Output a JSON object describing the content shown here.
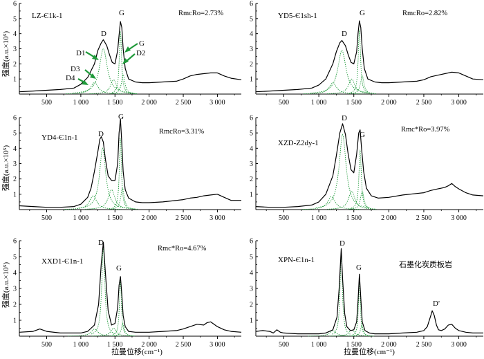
{
  "x_axis_title": "拉曼位移(cm⁻¹)",
  "y_axis_title": "强度(a.u.×10⁵)",
  "colors": {
    "spectrum": "#000000",
    "fit_band": "#1f9a3a",
    "arrow": "#1f9a3a"
  },
  "chart_data": [
    {
      "type": "line",
      "sample": "LZ-Є1k-1",
      "ro_label": "RmcRo=2.73%",
      "xlim": [
        100,
        3350
      ],
      "ylim": [
        0,
        6
      ],
      "x_ticks": [
        "500",
        "1 000",
        "1 500",
        "2 000",
        "2 500",
        "3 000"
      ],
      "y_ticks": [
        "1",
        "2",
        "3",
        "4",
        "5",
        "6"
      ],
      "peak_labels": [
        "D",
        "G",
        "G",
        "D1",
        "D2",
        "D3",
        "D4"
      ],
      "fit_bands": [
        {
          "name": "D4",
          "center": 1200,
          "height": 0.78,
          "width": 130
        },
        {
          "name": "D1",
          "center": 1330,
          "height": 3.0,
          "width": 140
        },
        {
          "name": "D3",
          "center": 1480,
          "height": 0.95,
          "width": 110
        },
        {
          "name": "G",
          "center": 1580,
          "height": 4.2,
          "width": 38
        },
        {
          "name": "D2",
          "center": 1620,
          "height": 1.3,
          "width": 60
        }
      ],
      "spectrum": {
        "x": [
          100,
          300,
          500,
          700,
          900,
          1000,
          1100,
          1200,
          1250,
          1300,
          1330,
          1380,
          1420,
          1460,
          1500,
          1540,
          1560,
          1580,
          1600,
          1620,
          1650,
          1700,
          1800,
          1900,
          2000,
          2200,
          2400,
          2500,
          2600,
          2700,
          2800,
          2900,
          3000,
          3100,
          3200,
          3350
        ],
        "y": [
          0.15,
          0.2,
          0.25,
          0.3,
          0.4,
          0.65,
          1.1,
          2.0,
          2.9,
          3.4,
          3.6,
          3.2,
          2.6,
          2.1,
          2.0,
          2.9,
          3.9,
          4.8,
          4.4,
          3.0,
          1.7,
          1.0,
          0.8,
          0.75,
          0.75,
          0.8,
          0.85,
          1.0,
          1.2,
          1.3,
          1.35,
          1.4,
          1.4,
          1.2,
          1.05,
          0.95
        ]
      }
    },
    {
      "type": "line",
      "sample": "YD5-Є1sh-1",
      "ro_label": "RmcRo=2.82%",
      "xlim": [
        100,
        3350
      ],
      "ylim": [
        0,
        6
      ],
      "x_ticks": [
        "500",
        "1 000",
        "1 500",
        "2 000",
        "2 500",
        "3 000"
      ],
      "y_ticks": [
        "1",
        "2",
        "3",
        "4",
        "5",
        "6"
      ],
      "peak_labels": [
        "D",
        "G"
      ],
      "fit_bands": [
        {
          "name": "D4",
          "center": 1200,
          "height": 0.75,
          "width": 130
        },
        {
          "name": "D1",
          "center": 1330,
          "height": 2.9,
          "width": 140
        },
        {
          "name": "D3",
          "center": 1470,
          "height": 1.0,
          "width": 110
        },
        {
          "name": "G",
          "center": 1580,
          "height": 4.3,
          "width": 38
        },
        {
          "name": "D2",
          "center": 1620,
          "height": 1.2,
          "width": 60
        }
      ],
      "spectrum": {
        "x": [
          100,
          300,
          500,
          700,
          900,
          1000,
          1100,
          1200,
          1250,
          1300,
          1330,
          1380,
          1420,
          1460,
          1500,
          1540,
          1560,
          1580,
          1600,
          1620,
          1650,
          1700,
          1800,
          1900,
          2000,
          2200,
          2400,
          2500,
          2600,
          2700,
          2800,
          2900,
          3000,
          3100,
          3200,
          3350
        ],
        "y": [
          0.15,
          0.2,
          0.25,
          0.3,
          0.4,
          0.6,
          1.0,
          2.0,
          2.8,
          3.4,
          3.55,
          3.2,
          2.6,
          2.1,
          2.0,
          2.8,
          4.0,
          4.85,
          4.4,
          3.0,
          1.7,
          1.0,
          0.8,
          0.75,
          0.75,
          0.8,
          0.85,
          0.95,
          1.15,
          1.25,
          1.35,
          1.45,
          1.4,
          1.2,
          1.0,
          0.95
        ]
      }
    },
    {
      "type": "line",
      "sample": "YD4-Є1n-1",
      "ro_label": "RmcRo=3.31%",
      "xlim": [
        100,
        3350
      ],
      "ylim": [
        0,
        6
      ],
      "x_ticks": [
        "500",
        "1 000",
        "1 500",
        "2 000",
        "2 500",
        "3 000"
      ],
      "y_ticks": [
        "1",
        "2",
        "3",
        "4",
        "5",
        "6"
      ],
      "peak_labels": [
        "D",
        "G"
      ],
      "fit_bands": [
        {
          "name": "D4",
          "center": 1180,
          "height": 0.9,
          "width": 130
        },
        {
          "name": "D1",
          "center": 1320,
          "height": 4.0,
          "width": 110
        },
        {
          "name": "D3",
          "center": 1450,
          "height": 1.3,
          "width": 120
        },
        {
          "name": "G",
          "center": 1580,
          "height": 4.8,
          "width": 36
        },
        {
          "name": "D2",
          "center": 1610,
          "height": 1.4,
          "width": 60
        }
      ],
      "spectrum": {
        "x": [
          100,
          300,
          500,
          700,
          900,
          1000,
          1100,
          1150,
          1200,
          1250,
          1280,
          1300,
          1330,
          1360,
          1400,
          1450,
          1500,
          1540,
          1560,
          1580,
          1600,
          1620,
          1650,
          1700,
          1800,
          1900,
          2000,
          2200,
          2400,
          2500,
          2600,
          2700,
          2800,
          2900,
          3000,
          3100,
          3200,
          3350
        ],
        "y": [
          0.25,
          0.2,
          0.15,
          0.15,
          0.2,
          0.35,
          0.8,
          1.4,
          2.5,
          3.8,
          4.6,
          4.75,
          4.4,
          3.3,
          2.2,
          1.9,
          1.9,
          3.0,
          5.0,
          5.9,
          4.3,
          2.5,
          1.3,
          0.75,
          0.5,
          0.45,
          0.45,
          0.5,
          0.6,
          0.65,
          0.75,
          0.8,
          0.9,
          0.95,
          1.0,
          0.8,
          0.6,
          0.6
        ]
      }
    },
    {
      "type": "line",
      "sample": "XZD-Z2dy-1",
      "ro_label": "Rmc*Ro=3.97%",
      "xlim": [
        100,
        3350
      ],
      "ylim": [
        0,
        6
      ],
      "x_ticks": [
        "500",
        "1 000",
        "1 500",
        "2 000",
        "2 500",
        "3 000"
      ],
      "y_ticks": [
        "1",
        "2",
        "3",
        "4",
        "5",
        "6"
      ],
      "peak_labels": [
        "D",
        "G"
      ],
      "fit_bands": [
        {
          "name": "D4",
          "center": 1180,
          "height": 0.85,
          "width": 130
        },
        {
          "name": "D1",
          "center": 1340,
          "height": 4.9,
          "width": 120
        },
        {
          "name": "D3",
          "center": 1470,
          "height": 1.2,
          "width": 110
        },
        {
          "name": "G",
          "center": 1590,
          "height": 3.9,
          "width": 40
        },
        {
          "name": "D2",
          "center": 1620,
          "height": 1.2,
          "width": 60
        }
      ],
      "spectrum": {
        "x": [
          100,
          300,
          500,
          700,
          900,
          1000,
          1100,
          1200,
          1250,
          1300,
          1340,
          1380,
          1420,
          1460,
          1500,
          1540,
          1570,
          1590,
          1610,
          1640,
          1680,
          1750,
          1850,
          2000,
          2200,
          2400,
          2500,
          2600,
          2700,
          2800,
          2850,
          2900,
          2950,
          3000,
          3100,
          3200,
          3350
        ],
        "y": [
          0.2,
          0.15,
          0.15,
          0.2,
          0.3,
          0.5,
          1.0,
          2.2,
          3.5,
          5.0,
          5.6,
          4.9,
          3.6,
          2.6,
          2.4,
          3.6,
          5.0,
          5.2,
          4.0,
          2.5,
          1.4,
          0.9,
          0.75,
          0.8,
          0.95,
          1.05,
          1.1,
          1.25,
          1.35,
          1.45,
          1.55,
          1.7,
          1.5,
          1.35,
          1.1,
          0.95,
          0.9
        ]
      }
    },
    {
      "type": "line",
      "sample": "XXD1-Є1n-1",
      "ro_label": "Rmc*Ro=4.67%",
      "xlim": [
        100,
        3350
      ],
      "ylim": [
        0,
        6
      ],
      "x_ticks": [
        "500",
        "1 000",
        "1 500",
        "2 000",
        "2 500",
        "3 000"
      ],
      "y_ticks": [
        "1",
        "2",
        "3",
        "4",
        "5",
        "6"
      ],
      "peak_labels": [
        "D",
        "G"
      ],
      "fit_bands": [
        {
          "name": "D4",
          "center": 1200,
          "height": 0.45,
          "width": 120
        },
        {
          "name": "D1",
          "center": 1330,
          "height": 5.6,
          "width": 55
        },
        {
          "name": "D3",
          "center": 1480,
          "height": 0.5,
          "width": 100
        },
        {
          "name": "G",
          "center": 1580,
          "height": 3.5,
          "width": 35
        },
        {
          "name": "D2",
          "center": 1615,
          "height": 0.8,
          "width": 50
        }
      ],
      "spectrum": {
        "x": [
          100,
          300,
          400,
          500,
          700,
          900,
          1000,
          1100,
          1200,
          1260,
          1300,
          1330,
          1360,
          1400,
          1450,
          1500,
          1540,
          1560,
          1580,
          1600,
          1620,
          1650,
          1700,
          1800,
          2000,
          2200,
          2400,
          2500,
          2600,
          2700,
          2800,
          2850,
          2900,
          2950,
          3000,
          3100,
          3200,
          3350
        ],
        "y": [
          0.25,
          0.3,
          0.45,
          0.3,
          0.2,
          0.2,
          0.2,
          0.3,
          0.7,
          2.0,
          4.6,
          5.9,
          4.0,
          1.6,
          0.7,
          0.8,
          1.8,
          3.2,
          3.75,
          2.6,
          1.3,
          0.6,
          0.3,
          0.25,
          0.25,
          0.3,
          0.35,
          0.45,
          0.6,
          0.75,
          0.7,
          0.85,
          0.9,
          0.75,
          0.6,
          0.4,
          0.3,
          0.25
        ]
      }
    },
    {
      "type": "line",
      "sample": "XPN-Є1n-1",
      "ro_label": "",
      "note": "石墨化炭质板岩",
      "xlim": [
        100,
        3350
      ],
      "ylim": [
        0,
        6
      ],
      "x_ticks": [
        "500",
        "1 000",
        "1 500",
        "2 000",
        "2 500",
        "3 000"
      ],
      "y_ticks": [
        "1",
        "2",
        "3",
        "4",
        "5",
        "6"
      ],
      "peak_labels": [
        "D",
        "G",
        "D'"
      ],
      "fit_bands": [
        {
          "name": "D4",
          "center": 1200,
          "height": 0.35,
          "width": 110
        },
        {
          "name": "D1",
          "center": 1320,
          "height": 5.3,
          "width": 40
        },
        {
          "name": "D3",
          "center": 1470,
          "height": 0.4,
          "width": 100
        },
        {
          "name": "G",
          "center": 1580,
          "height": 3.6,
          "width": 30
        },
        {
          "name": "D2",
          "center": 1615,
          "height": 0.7,
          "width": 45
        }
      ],
      "spectrum": {
        "x": [
          100,
          200,
          300,
          350,
          400,
          450,
          500,
          700,
          900,
          1000,
          1100,
          1200,
          1260,
          1290,
          1320,
          1340,
          1370,
          1400,
          1450,
          1500,
          1540,
          1560,
          1580,
          1600,
          1620,
          1660,
          1720,
          1800,
          2000,
          2200,
          2400,
          2500,
          2550,
          2600,
          2620,
          2650,
          2680,
          2710,
          2750,
          2800,
          2850,
          2900,
          2950,
          3000,
          3100,
          3200,
          3350
        ],
        "y": [
          0.3,
          0.35,
          0.3,
          0.2,
          0.4,
          0.25,
          0.2,
          0.15,
          0.15,
          0.15,
          0.2,
          0.4,
          1.2,
          3.0,
          5.5,
          3.6,
          1.4,
          0.6,
          0.35,
          0.4,
          0.9,
          2.2,
          3.9,
          2.4,
          0.9,
          0.35,
          0.2,
          0.15,
          0.15,
          0.2,
          0.25,
          0.35,
          0.6,
          1.3,
          1.6,
          1.3,
          0.7,
          0.4,
          0.35,
          0.45,
          0.7,
          0.75,
          0.5,
          0.35,
          0.25,
          0.2,
          0.2
        ]
      }
    }
  ]
}
